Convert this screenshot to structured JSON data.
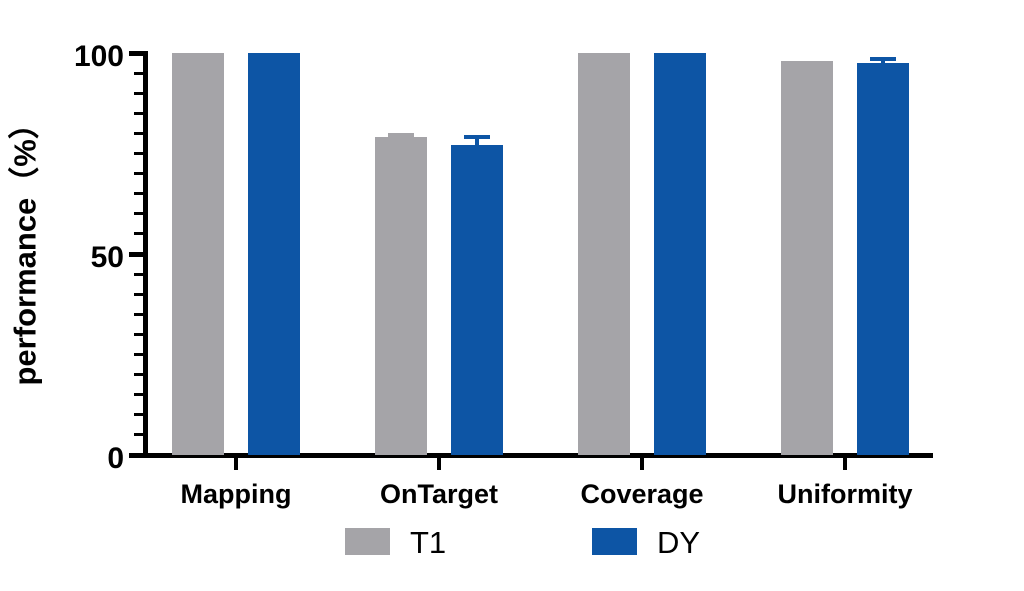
{
  "chart_data": {
    "type": "bar",
    "title": "",
    "ylabel": "performance（%）",
    "xlabel": "",
    "ylim": [
      0,
      100
    ],
    "yticks": [
      "0",
      "50",
      "100"
    ],
    "minor_tick_step": 5,
    "grid": false,
    "legend_position": "bottom",
    "axis_color": "#000000",
    "categories": [
      "Mapping",
      "OnTarget",
      "Coverage",
      "Uniformity"
    ],
    "series": [
      {
        "name": "T1",
        "color": "#a5a4a8",
        "values": [
          99.9,
          79.0,
          100.0,
          98.0
        ],
        "errors": [
          0,
          0.5,
          0,
          0
        ]
      },
      {
        "name": "DY",
        "color": "#0d55a5",
        "values": [
          99.9,
          77.0,
          100.0,
          97.4
        ],
        "errors": [
          0,
          2.0,
          0,
          1.1
        ]
      }
    ]
  }
}
